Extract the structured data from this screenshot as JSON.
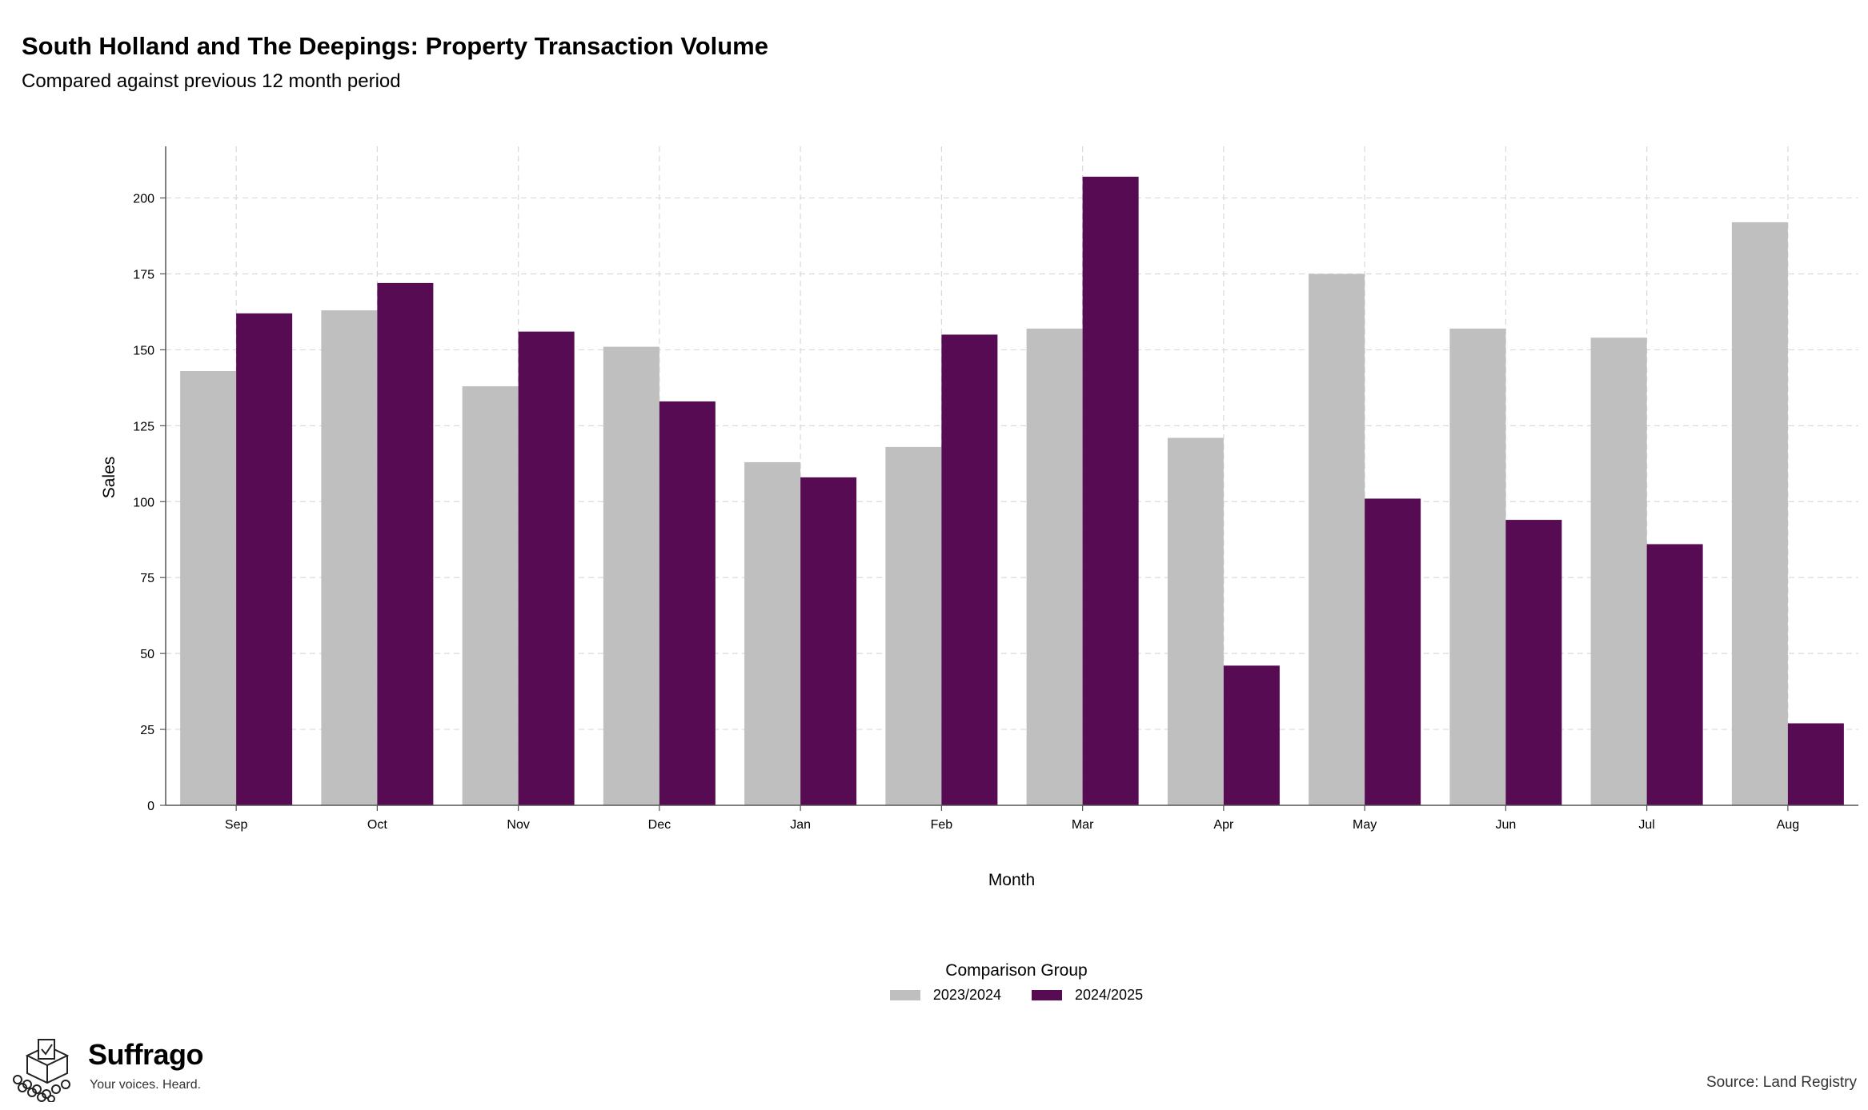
{
  "header": {
    "title": "South Holland and The Deepings: Property Transaction Volume",
    "subtitle": "Compared against previous 12 month period"
  },
  "chart_data": {
    "type": "bar",
    "categories": [
      "Sep",
      "Oct",
      "Nov",
      "Dec",
      "Jan",
      "Feb",
      "Mar",
      "Apr",
      "May",
      "Jun",
      "Jul",
      "Aug"
    ],
    "series": [
      {
        "name": "2023/2024",
        "color": "#bfbfbf",
        "values": [
          143,
          163,
          138,
          151,
          113,
          118,
          157,
          121,
          175,
          157,
          154,
          192
        ]
      },
      {
        "name": "2024/2025",
        "color": "#560b53",
        "values": [
          162,
          172,
          156,
          133,
          108,
          155,
          207,
          46,
          101,
          94,
          86,
          27
        ]
      }
    ],
    "xlabel": "Month",
    "ylabel": "Sales",
    "ylim": [
      0,
      217
    ],
    "yticks": [
      0,
      25,
      50,
      75,
      100,
      125,
      150,
      175,
      200
    ],
    "grid": true,
    "legend": {
      "title": "Comparison Group",
      "position": "bottom"
    }
  },
  "footer": {
    "brand": "Suffrago",
    "tagline": "Your voices. Heard.",
    "source": "Source: Land Registry"
  }
}
